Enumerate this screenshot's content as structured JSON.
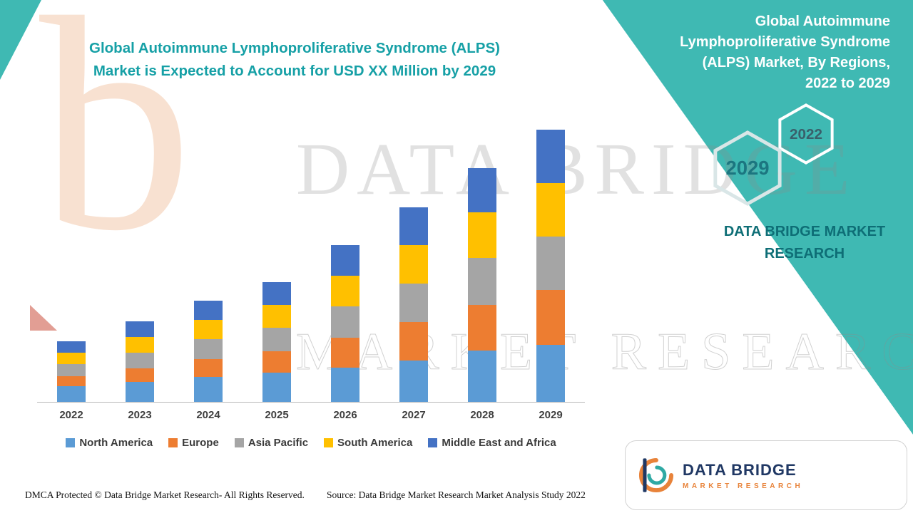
{
  "page": {
    "background": "#ffffff",
    "accent_teal": "#3FB9B3"
  },
  "chart": {
    "title_lines": [
      "Global Autoimmune Lymphoproliferative Syndrome (ALPS)",
      "Market is Expected to Account for USD XX Million by 2029"
    ],
    "title_color": "#16A0A6"
  },
  "chart_data": {
    "type": "bar",
    "stacked": true,
    "title": "Global Autoimmune Lymphoproliferative Syndrome (ALPS) Market is Expected to Account for USD XX Million by 2029",
    "xlabel": "",
    "ylabel": "",
    "y_axis_visible": false,
    "grid": false,
    "legend_position": "bottom",
    "note": "Actual values are masked in the source image as 'USD XX Million'; series values below are relative estimates read from bar heights.",
    "categories": [
      "2022",
      "2023",
      "2024",
      "2025",
      "2026",
      "2027",
      "2028",
      "2029"
    ],
    "ylim": [
      0,
      400
    ],
    "series": [
      {
        "name": "North America",
        "color": "#5B9BD5",
        "values": [
          22,
          28,
          35,
          41,
          48,
          58,
          72,
          80
        ]
      },
      {
        "name": "Europe",
        "color": "#ED7D31",
        "values": [
          14,
          19,
          25,
          30,
          42,
          54,
          64,
          77
        ]
      },
      {
        "name": "Asia Pacific",
        "color": "#A5A5A5",
        "values": [
          17,
          22,
          28,
          33,
          44,
          54,
          66,
          75
        ]
      },
      {
        "name": "South America",
        "color": "#FFC000",
        "values": [
          16,
          22,
          27,
          32,
          43,
          54,
          64,
          75
        ]
      },
      {
        "name": "Middle East and Africa",
        "color": "#4472C4",
        "values": [
          16,
          22,
          27,
          32,
          43,
          53,
          62,
          75
        ]
      }
    ],
    "totals": [
      85,
      113,
      142,
      168,
      220,
      273,
      328,
      382
    ]
  },
  "panel": {
    "title_lines": [
      "Global Autoimmune",
      "Lymphoproliferative Syndrome",
      "(ALPS) Market, By Regions,",
      "2022 to 2029"
    ],
    "hexagons": [
      {
        "label": "2022"
      },
      {
        "label": "2029"
      }
    ],
    "brand_lines": [
      "DATA BRIDGE MARKET",
      "RESEARCH"
    ]
  },
  "watermark": {
    "letter": "b",
    "line1": "DATA BRIDGE",
    "line2": "MARKET RESEARCH"
  },
  "logo": {
    "name_line": "DATA BRIDGE",
    "sub_line": "MARKET RESEARCH"
  },
  "footer": {
    "left": "DMCA Protected © Data Bridge Market Research- All Rights Reserved.",
    "source": "Source: Data Bridge Market Research Market Analysis Study 2022"
  }
}
